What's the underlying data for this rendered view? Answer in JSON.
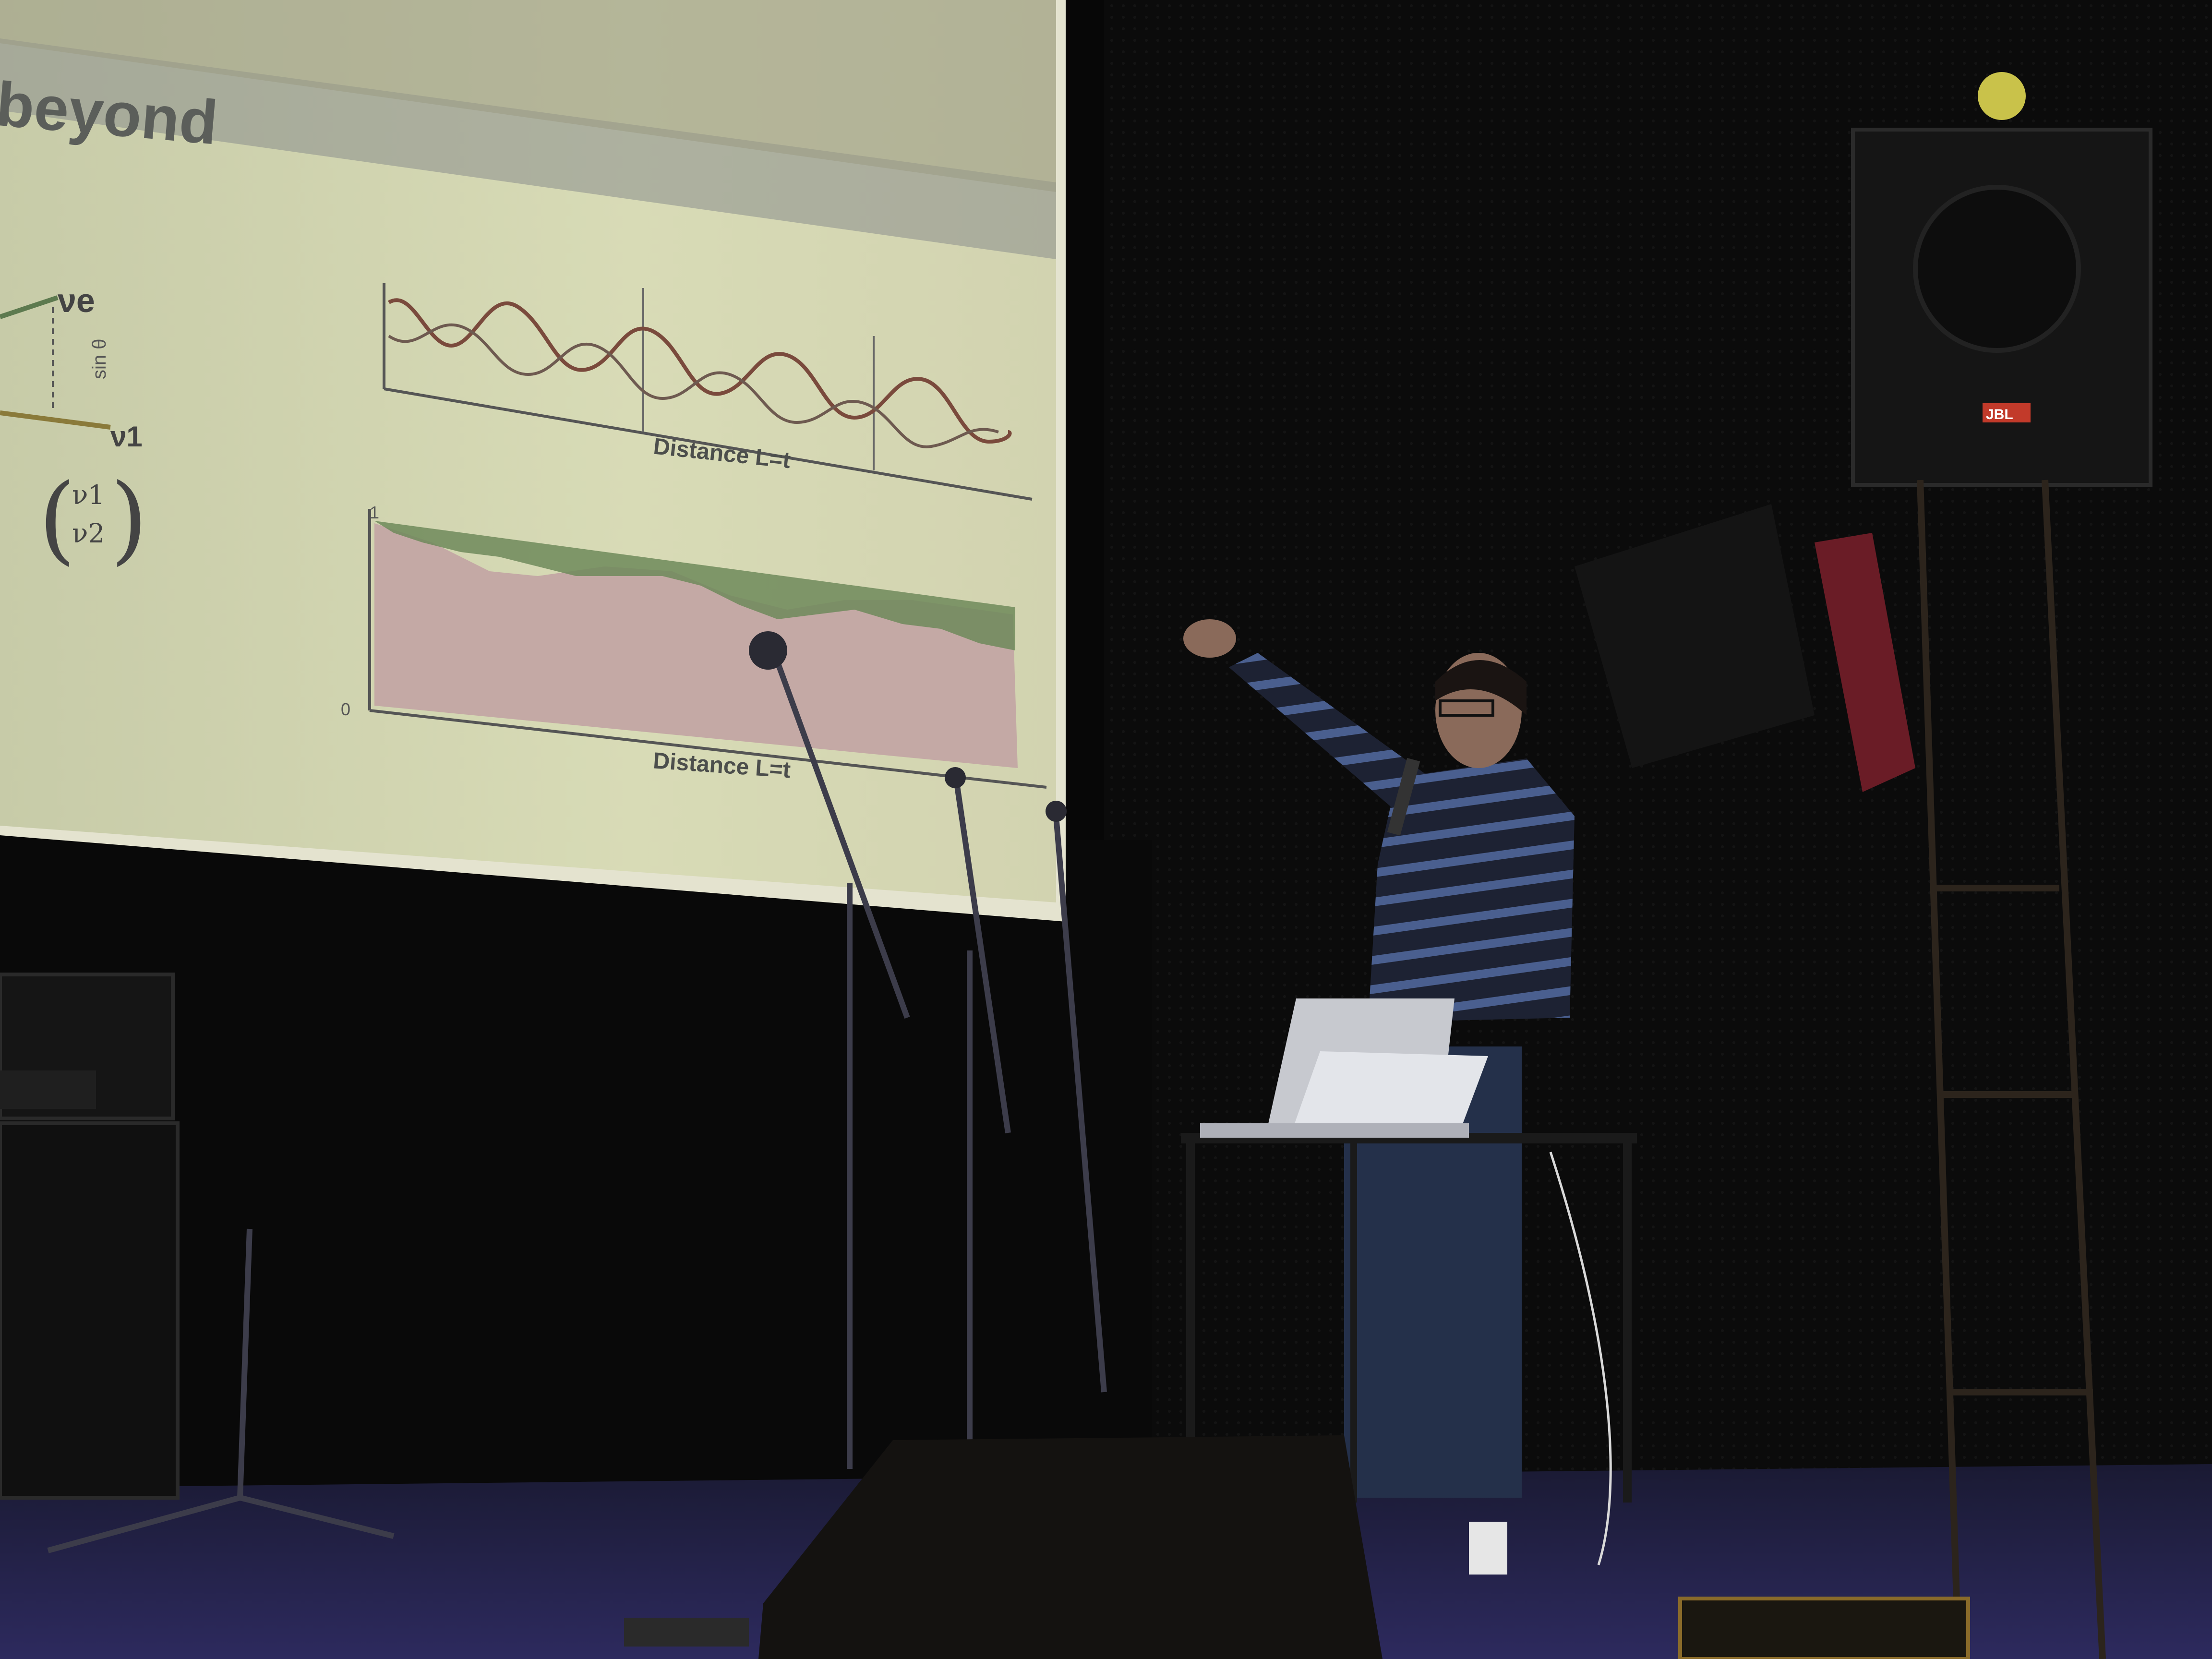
{
  "slide": {
    "title_fragment": "beyond",
    "upper_xlabel": "Distance L=t",
    "lower_xlabel": "Distance L=t",
    "nu_e": "νe",
    "nu_1": "ν1",
    "vector_label": "sin θ",
    "matrix_top": "ν1",
    "matrix_bottom": "ν2",
    "axis_one": "1",
    "axis_zero": "0"
  },
  "speaker_brand": "JBL",
  "colors": {
    "slide_bg": "#d6d9b4",
    "slide_band": "#8a8e8c",
    "wave_a": "#7a4a3c",
    "wave_b": "#6e5a50",
    "area_fill": "#c4a9a5",
    "area_top": "#6f8a5a",
    "sweater_dark": "#1d2233",
    "sweater_stripe": "#4a5f8f",
    "stage_floor": "#2a2a52"
  }
}
